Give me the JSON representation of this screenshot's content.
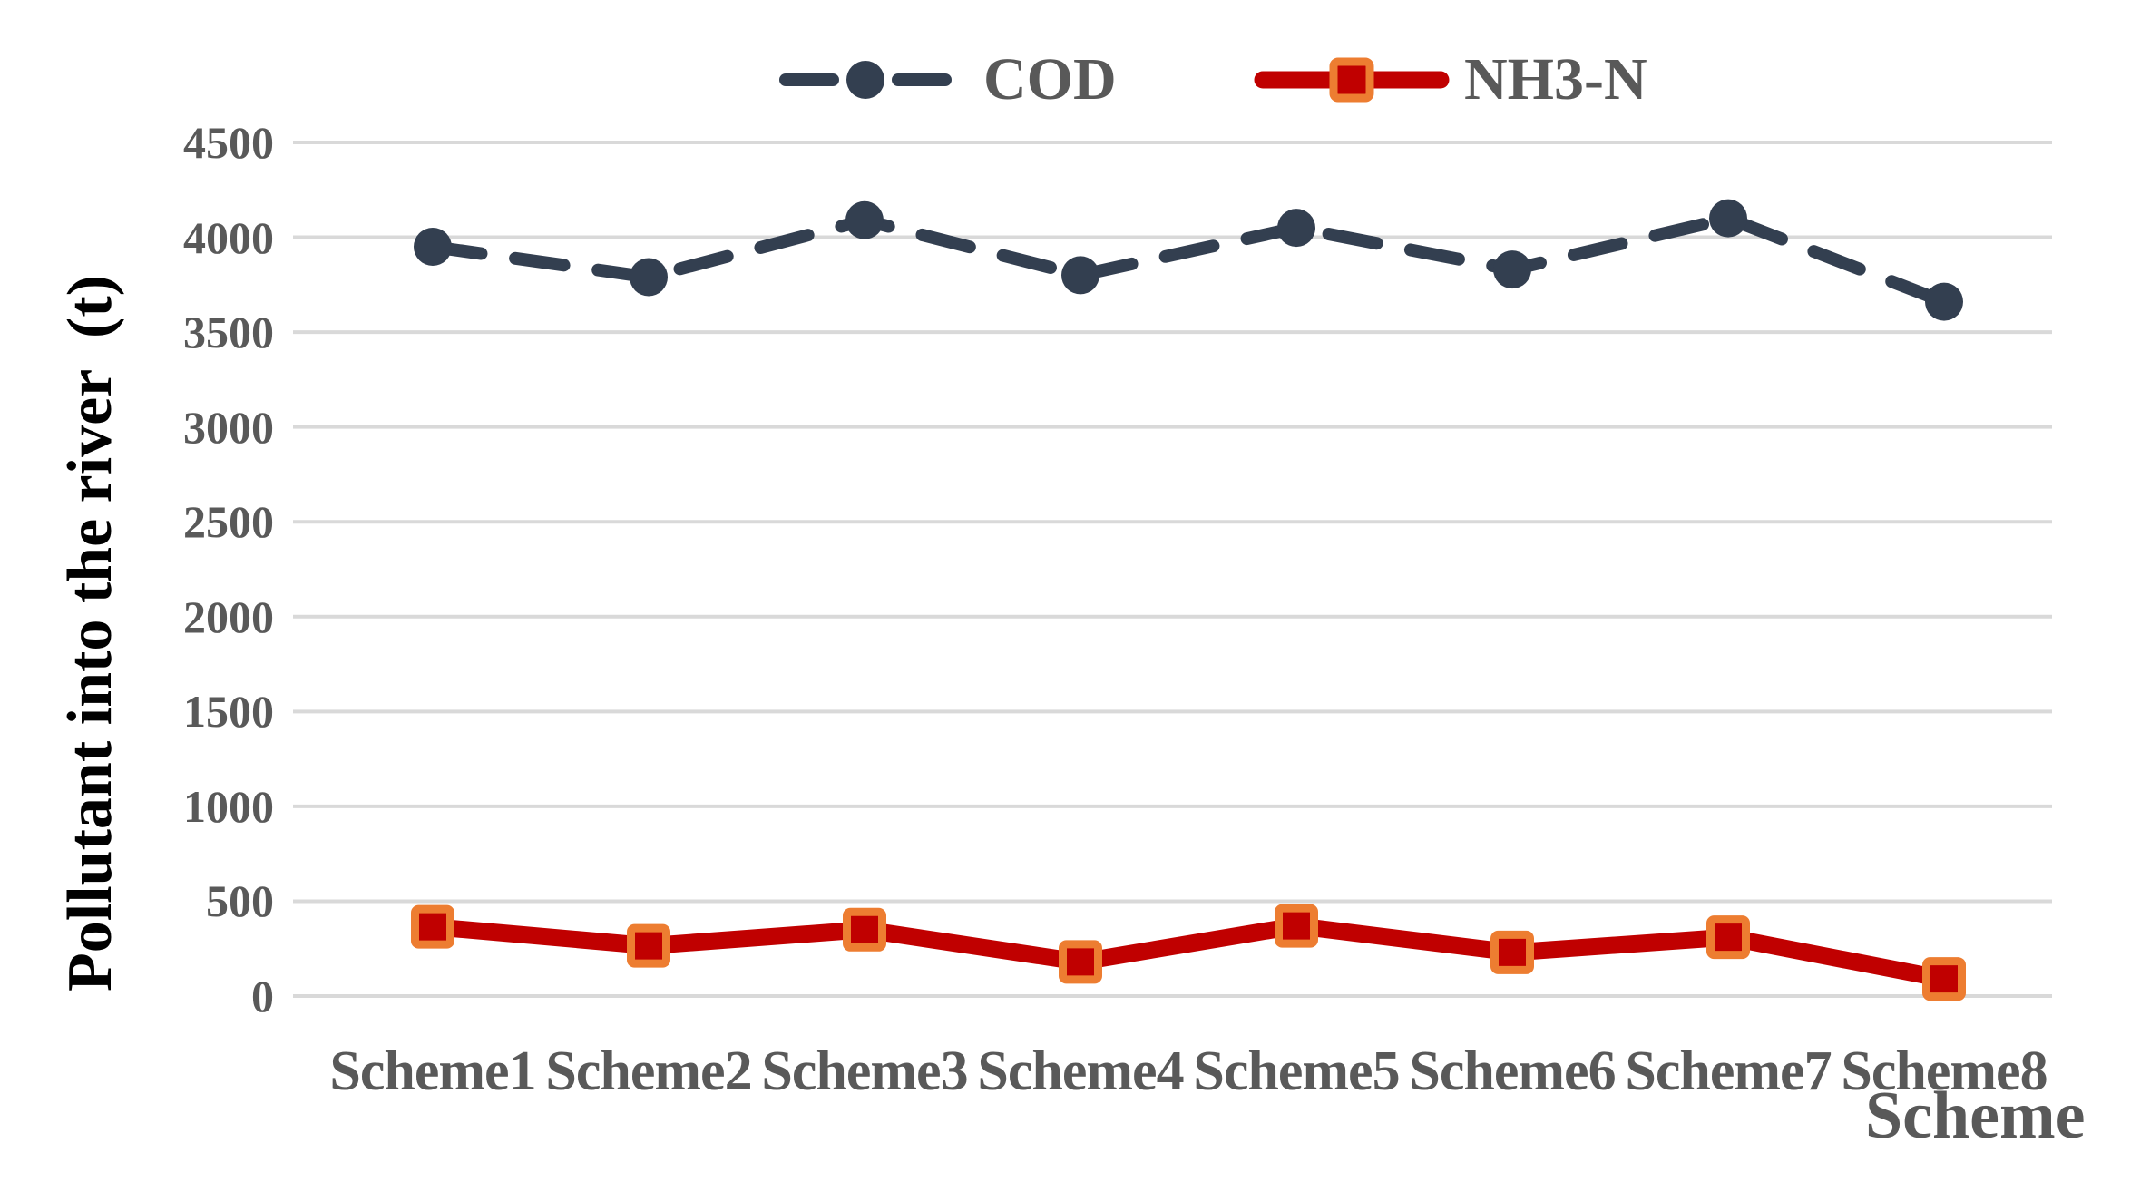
{
  "chart_data": {
    "type": "line",
    "title": "",
    "xlabel": "Scheme",
    "ylabel": "Pollutant into the river  (t)",
    "categories": [
      "Scheme1",
      "Scheme2",
      "Scheme3",
      "Scheme4",
      "Scheme5",
      "Scheme6",
      "Scheme7",
      "Scheme8"
    ],
    "series": [
      {
        "name": "COD",
        "color": "#333F50",
        "line_style": "dashed",
        "marker": "circle",
        "values": [
          3950,
          3790,
          4090,
          3800,
          4050,
          3830,
          4100,
          3660
        ]
      },
      {
        "name": "NH3-N",
        "color": "#C00000",
        "marker_fill": "#C00000",
        "marker_border": "#ED7D31",
        "line_style": "solid",
        "marker": "square",
        "values": [
          365,
          265,
          350,
          180,
          370,
          230,
          310,
          90
        ]
      }
    ],
    "ylim": [
      0,
      4500
    ],
    "yticks": [
      0,
      500,
      1000,
      1500,
      2000,
      2500,
      3000,
      3500,
      4000,
      4500
    ],
    "grid": "horizontal",
    "legend_position": "top-center"
  },
  "colors": {
    "background": "#FFFFFF",
    "gridline": "#D9D9D9",
    "tick_label": "#595959",
    "legend_label": "#595959",
    "x_axis_title": "#595959",
    "y_axis_title": "#000000"
  }
}
